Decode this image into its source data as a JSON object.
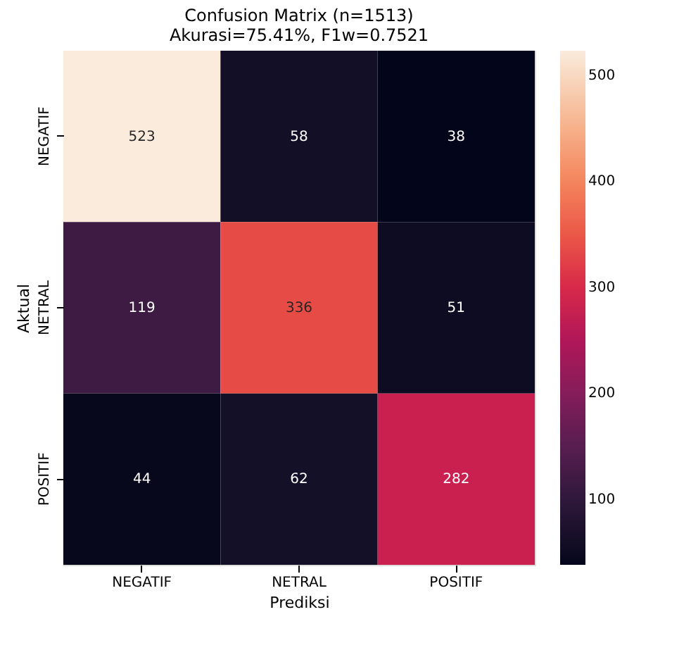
{
  "chart_data": {
    "type": "heatmap",
    "title": "Confusion Matrix (n=1513)",
    "subtitle": "Akurasi=75.41%, F1w=0.7521",
    "xlabel": "Prediksi",
    "ylabel": "Aktual",
    "categories": [
      "NEGATIF",
      "NETRAL",
      "POSITIF"
    ],
    "y_categories": [
      "NEGATIF",
      "NETRAL",
      "POSITIF"
    ],
    "cells": [
      [
        523,
        58,
        38
      ],
      [
        119,
        336,
        51
      ],
      [
        44,
        62,
        282
      ]
    ],
    "clim": [
      38,
      523
    ],
    "cticks": [
      100,
      200,
      300,
      400,
      500
    ],
    "data_labels": true
  }
}
